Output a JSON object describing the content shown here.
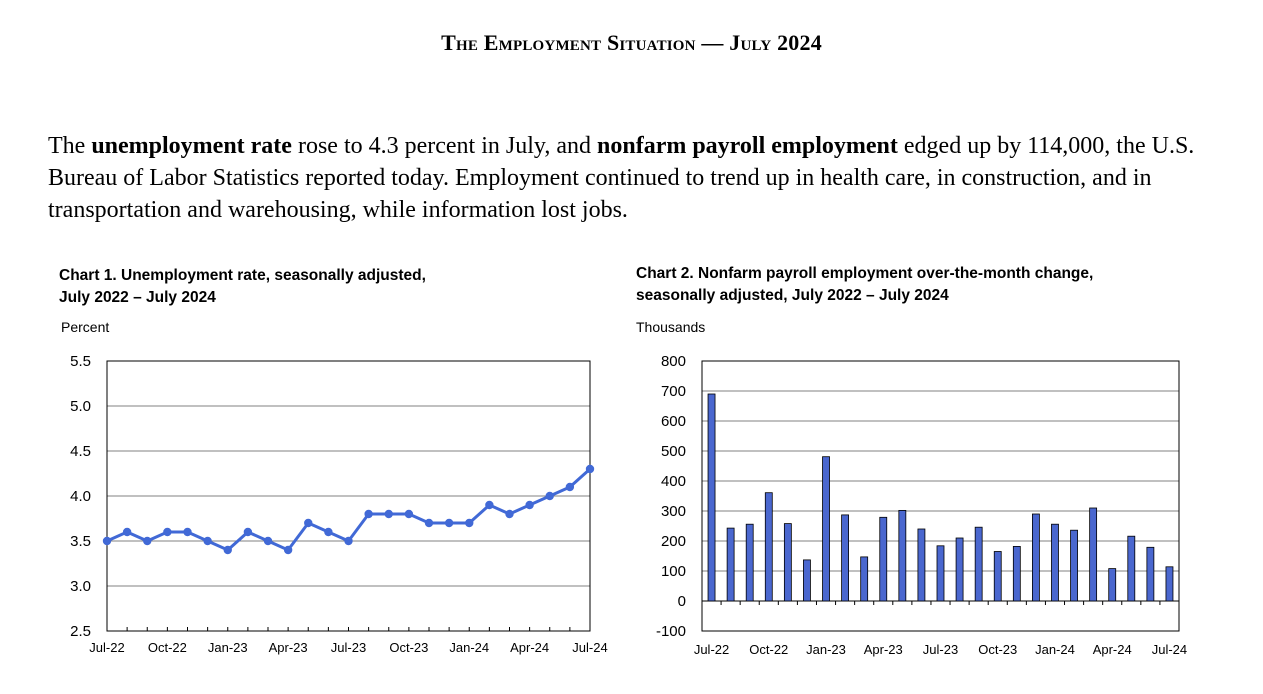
{
  "page": {
    "title": "The Employment Situation — July 2024",
    "intro": {
      "part1": "The ",
      "bold1": "unemployment rate",
      "part2": " rose to 4.3 percent in July, and ",
      "bold2": "nonfarm payroll employment",
      "part3": " edged up by 114,000, the U.S. Bureau of Labor Statistics reported today. Employment continued to trend up in health care, in construction, and in transportation and warehousing, while information lost jobs."
    }
  },
  "colors": {
    "series": "#4169d6",
    "bar_fill": "#4a67cf",
    "bar_stroke": "#000000",
    "grid": "#808080"
  },
  "chart_data": [
    {
      "type": "line",
      "title_line1": "Chart 1. Unemployment rate, seasonally adjusted,",
      "title_line2": "July 2022 – July 2024",
      "ylabel": "Percent",
      "ylim": [
        2.5,
        5.5
      ],
      "yticks": [
        "5.5",
        "5.0",
        "4.5",
        "4.0",
        "3.5",
        "3.0",
        "2.5"
      ],
      "ytick_values": [
        5.5,
        5.0,
        4.5,
        4.0,
        3.5,
        3.0,
        2.5
      ],
      "xtick_labels": [
        "Jul-22",
        "Oct-22",
        "Jan-23",
        "Apr-23",
        "Jul-23",
        "Oct-23",
        "Jan-24",
        "Apr-24",
        "Jul-24"
      ],
      "xtick_every": 3,
      "grid": true,
      "categories": [
        "Jul-22",
        "Aug-22",
        "Sep-22",
        "Oct-22",
        "Nov-22",
        "Dec-22",
        "Jan-23",
        "Feb-23",
        "Mar-23",
        "Apr-23",
        "May-23",
        "Jun-23",
        "Jul-23",
        "Aug-23",
        "Sep-23",
        "Oct-23",
        "Nov-23",
        "Dec-23",
        "Jan-24",
        "Feb-24",
        "Mar-24",
        "Apr-24",
        "May-24",
        "Jun-24",
        "Jul-24"
      ],
      "values": [
        3.5,
        3.6,
        3.5,
        3.6,
        3.6,
        3.5,
        3.4,
        3.6,
        3.5,
        3.4,
        3.7,
        3.6,
        3.5,
        3.8,
        3.8,
        3.8,
        3.7,
        3.7,
        3.7,
        3.9,
        3.8,
        3.9,
        4.0,
        4.1,
        4.3
      ]
    },
    {
      "type": "bar",
      "title_line1": "Chart 2. Nonfarm payroll employment over-the-month change,",
      "title_line2": "seasonally adjusted, July 2022 – July 2024",
      "ylabel": "Thousands",
      "ylim": [
        -100,
        800
      ],
      "yticks": [
        "800",
        "700",
        "600",
        "500",
        "400",
        "300",
        "200",
        "100",
        "0",
        "-100"
      ],
      "ytick_values": [
        800,
        700,
        600,
        500,
        400,
        300,
        200,
        100,
        0,
        -100
      ],
      "xtick_labels": [
        "Jul-22",
        "Oct-22",
        "Jan-23",
        "Apr-23",
        "Jul-23",
        "Oct-23",
        "Jan-24",
        "Apr-24",
        "Jul-24"
      ],
      "xtick_every": 3,
      "grid": true,
      "categories": [
        "Jul-22",
        "Aug-22",
        "Sep-22",
        "Oct-22",
        "Nov-22",
        "Dec-22",
        "Jan-23",
        "Feb-23",
        "Mar-23",
        "Apr-23",
        "May-23",
        "Jun-23",
        "Jul-23",
        "Aug-23",
        "Sep-23",
        "Oct-23",
        "Nov-23",
        "Dec-23",
        "Jan-24",
        "Feb-24",
        "Mar-24",
        "Apr-24",
        "May-24",
        "Jun-24",
        "Jul-24"
      ],
      "values": [
        690,
        243,
        256,
        361,
        258,
        137,
        481,
        287,
        147,
        279,
        302,
        240,
        184,
        210,
        246,
        165,
        182,
        290,
        256,
        236,
        310,
        108,
        216,
        179,
        114
      ]
    }
  ]
}
